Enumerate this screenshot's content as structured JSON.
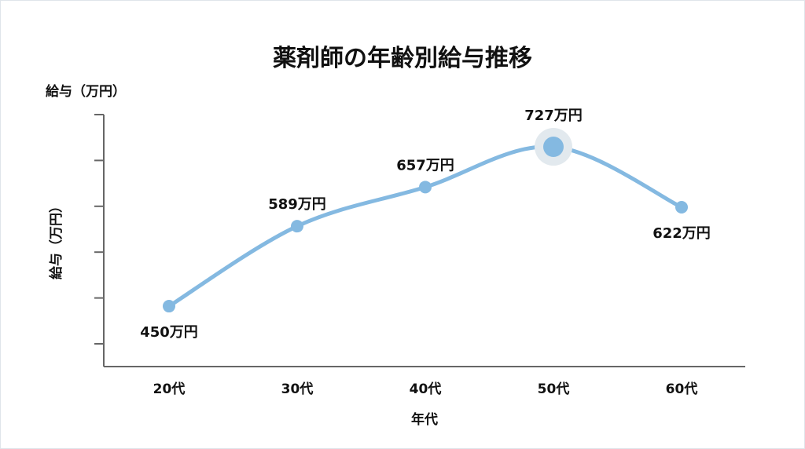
{
  "chart_data": {
    "type": "line",
    "title": "薬剤師の年齢別給与推移",
    "ylabel_top": "給与（万円）",
    "ylabel": "給与（万円）",
    "xlabel": "年代",
    "categories": [
      "20代",
      "30代",
      "40代",
      "50代",
      "60代"
    ],
    "values": [
      450,
      589,
      657,
      727,
      622
    ],
    "data_labels": [
      "450万円",
      "589万円",
      "657万円",
      "727万円",
      "622万円"
    ],
    "highlight": "50代",
    "ylim": [
      345,
      783
    ],
    "y_ticks_count": 6,
    "y_tick_labels_shown": false,
    "grid": false,
    "smooth": true,
    "colors": {
      "line": "#84b9e1",
      "highlight_halo": "#e2e9ee",
      "axis": "#666666"
    }
  }
}
